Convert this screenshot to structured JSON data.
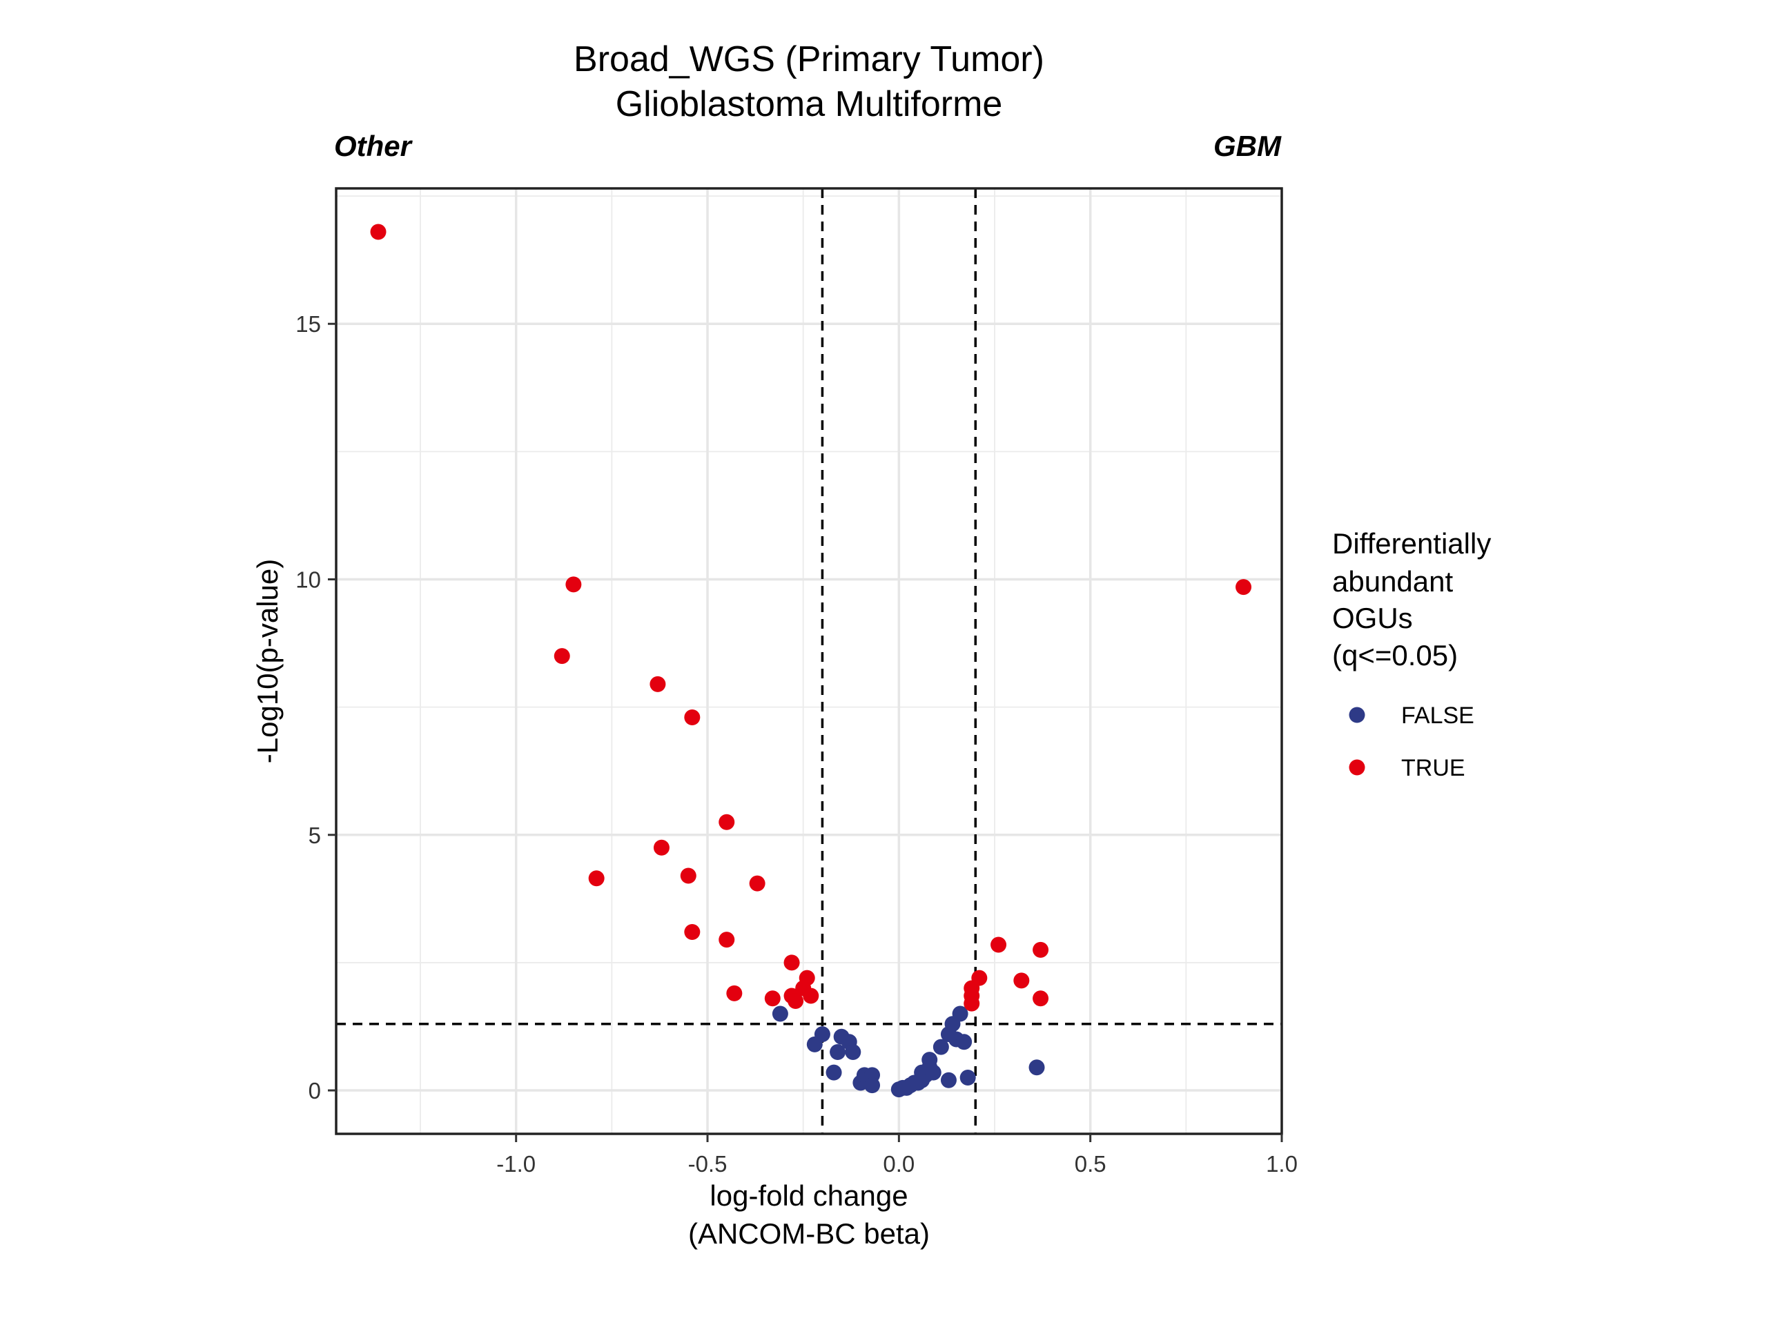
{
  "chart_data": {
    "type": "scatter",
    "title": "Broad_WGS (Primary Tumor)",
    "subtitle": "Glioblastoma Multiforme",
    "left_annotation": "Other",
    "right_annotation": "GBM",
    "xlabel": [
      "log-fold change",
      "(ANCOM-BC beta)"
    ],
    "ylabel": "-Log10(p-value)",
    "xlim": [
      -1.47,
      1.0
    ],
    "ylim": [
      -0.85,
      17.65
    ],
    "x_ticks": [
      -1.0,
      -0.5,
      0.0,
      0.5,
      1.0
    ],
    "x_tick_labels": [
      "-1.0",
      "-0.5",
      "0.0",
      "0.5",
      "1.0"
    ],
    "y_ticks": [
      0,
      5,
      10,
      15
    ],
    "y_tick_labels": [
      "0",
      "5",
      "10",
      "15"
    ],
    "grid": true,
    "reference_lines": {
      "vertical": [
        -0.2,
        0.2
      ],
      "horizontal": [
        1.3
      ]
    },
    "legend": {
      "title": [
        "Differentially",
        "abundant",
        "OGUs",
        "(q<=0.05)"
      ],
      "placement": "right",
      "entries": [
        {
          "label": "FALSE",
          "color": "#2e3a87"
        },
        {
          "label": "TRUE",
          "color": "#e3000f"
        }
      ]
    },
    "series": [
      {
        "name": "FALSE",
        "color": "#2e3a87",
        "points": [
          [
            -0.31,
            1.5
          ],
          [
            -0.22,
            0.9
          ],
          [
            -0.2,
            1.1
          ],
          [
            -0.17,
            0.35
          ],
          [
            -0.16,
            0.75
          ],
          [
            -0.15,
            1.05
          ],
          [
            -0.13,
            0.95
          ],
          [
            -0.12,
            0.75
          ],
          [
            -0.1,
            0.15
          ],
          [
            -0.09,
            0.3
          ],
          [
            -0.08,
            0.2
          ],
          [
            -0.07,
            0.3
          ],
          [
            -0.07,
            0.1
          ],
          [
            0.0,
            0.02
          ],
          [
            0.01,
            0.05
          ],
          [
            0.02,
            0.05
          ],
          [
            0.03,
            0.1
          ],
          [
            0.04,
            0.15
          ],
          [
            0.05,
            0.15
          ],
          [
            0.06,
            0.2
          ],
          [
            0.06,
            0.35
          ],
          [
            0.07,
            0.3
          ],
          [
            0.08,
            0.45
          ],
          [
            0.08,
            0.6
          ],
          [
            0.09,
            0.35
          ],
          [
            0.11,
            0.85
          ],
          [
            0.13,
            1.1
          ],
          [
            0.13,
            0.2
          ],
          [
            0.14,
            1.3
          ],
          [
            0.15,
            1.0
          ],
          [
            0.16,
            1.5
          ],
          [
            0.17,
            0.95
          ],
          [
            0.18,
            0.25
          ],
          [
            0.36,
            0.45
          ]
        ]
      },
      {
        "name": "TRUE",
        "color": "#e3000f",
        "points": [
          [
            -1.36,
            16.8
          ],
          [
            -0.85,
            9.9
          ],
          [
            -0.88,
            8.5
          ],
          [
            -0.63,
            7.95
          ],
          [
            -0.54,
            7.3
          ],
          [
            -0.45,
            5.25
          ],
          [
            -0.62,
            4.75
          ],
          [
            -0.79,
            4.15
          ],
          [
            -0.55,
            4.2
          ],
          [
            -0.37,
            4.05
          ],
          [
            -0.54,
            3.1
          ],
          [
            -0.45,
            2.95
          ],
          [
            -0.43,
            1.9
          ],
          [
            -0.33,
            1.8
          ],
          [
            -0.28,
            2.5
          ],
          [
            -0.28,
            1.85
          ],
          [
            -0.27,
            1.75
          ],
          [
            -0.25,
            2.0
          ],
          [
            -0.24,
            2.2
          ],
          [
            -0.23,
            1.85
          ],
          [
            0.19,
            2.0
          ],
          [
            0.19,
            1.7
          ],
          [
            0.19,
            1.85
          ],
          [
            0.21,
            2.2
          ],
          [
            0.26,
            2.85
          ],
          [
            0.32,
            2.15
          ],
          [
            0.37,
            2.75
          ],
          [
            0.37,
            1.8
          ],
          [
            0.9,
            9.85
          ]
        ]
      }
    ]
  }
}
